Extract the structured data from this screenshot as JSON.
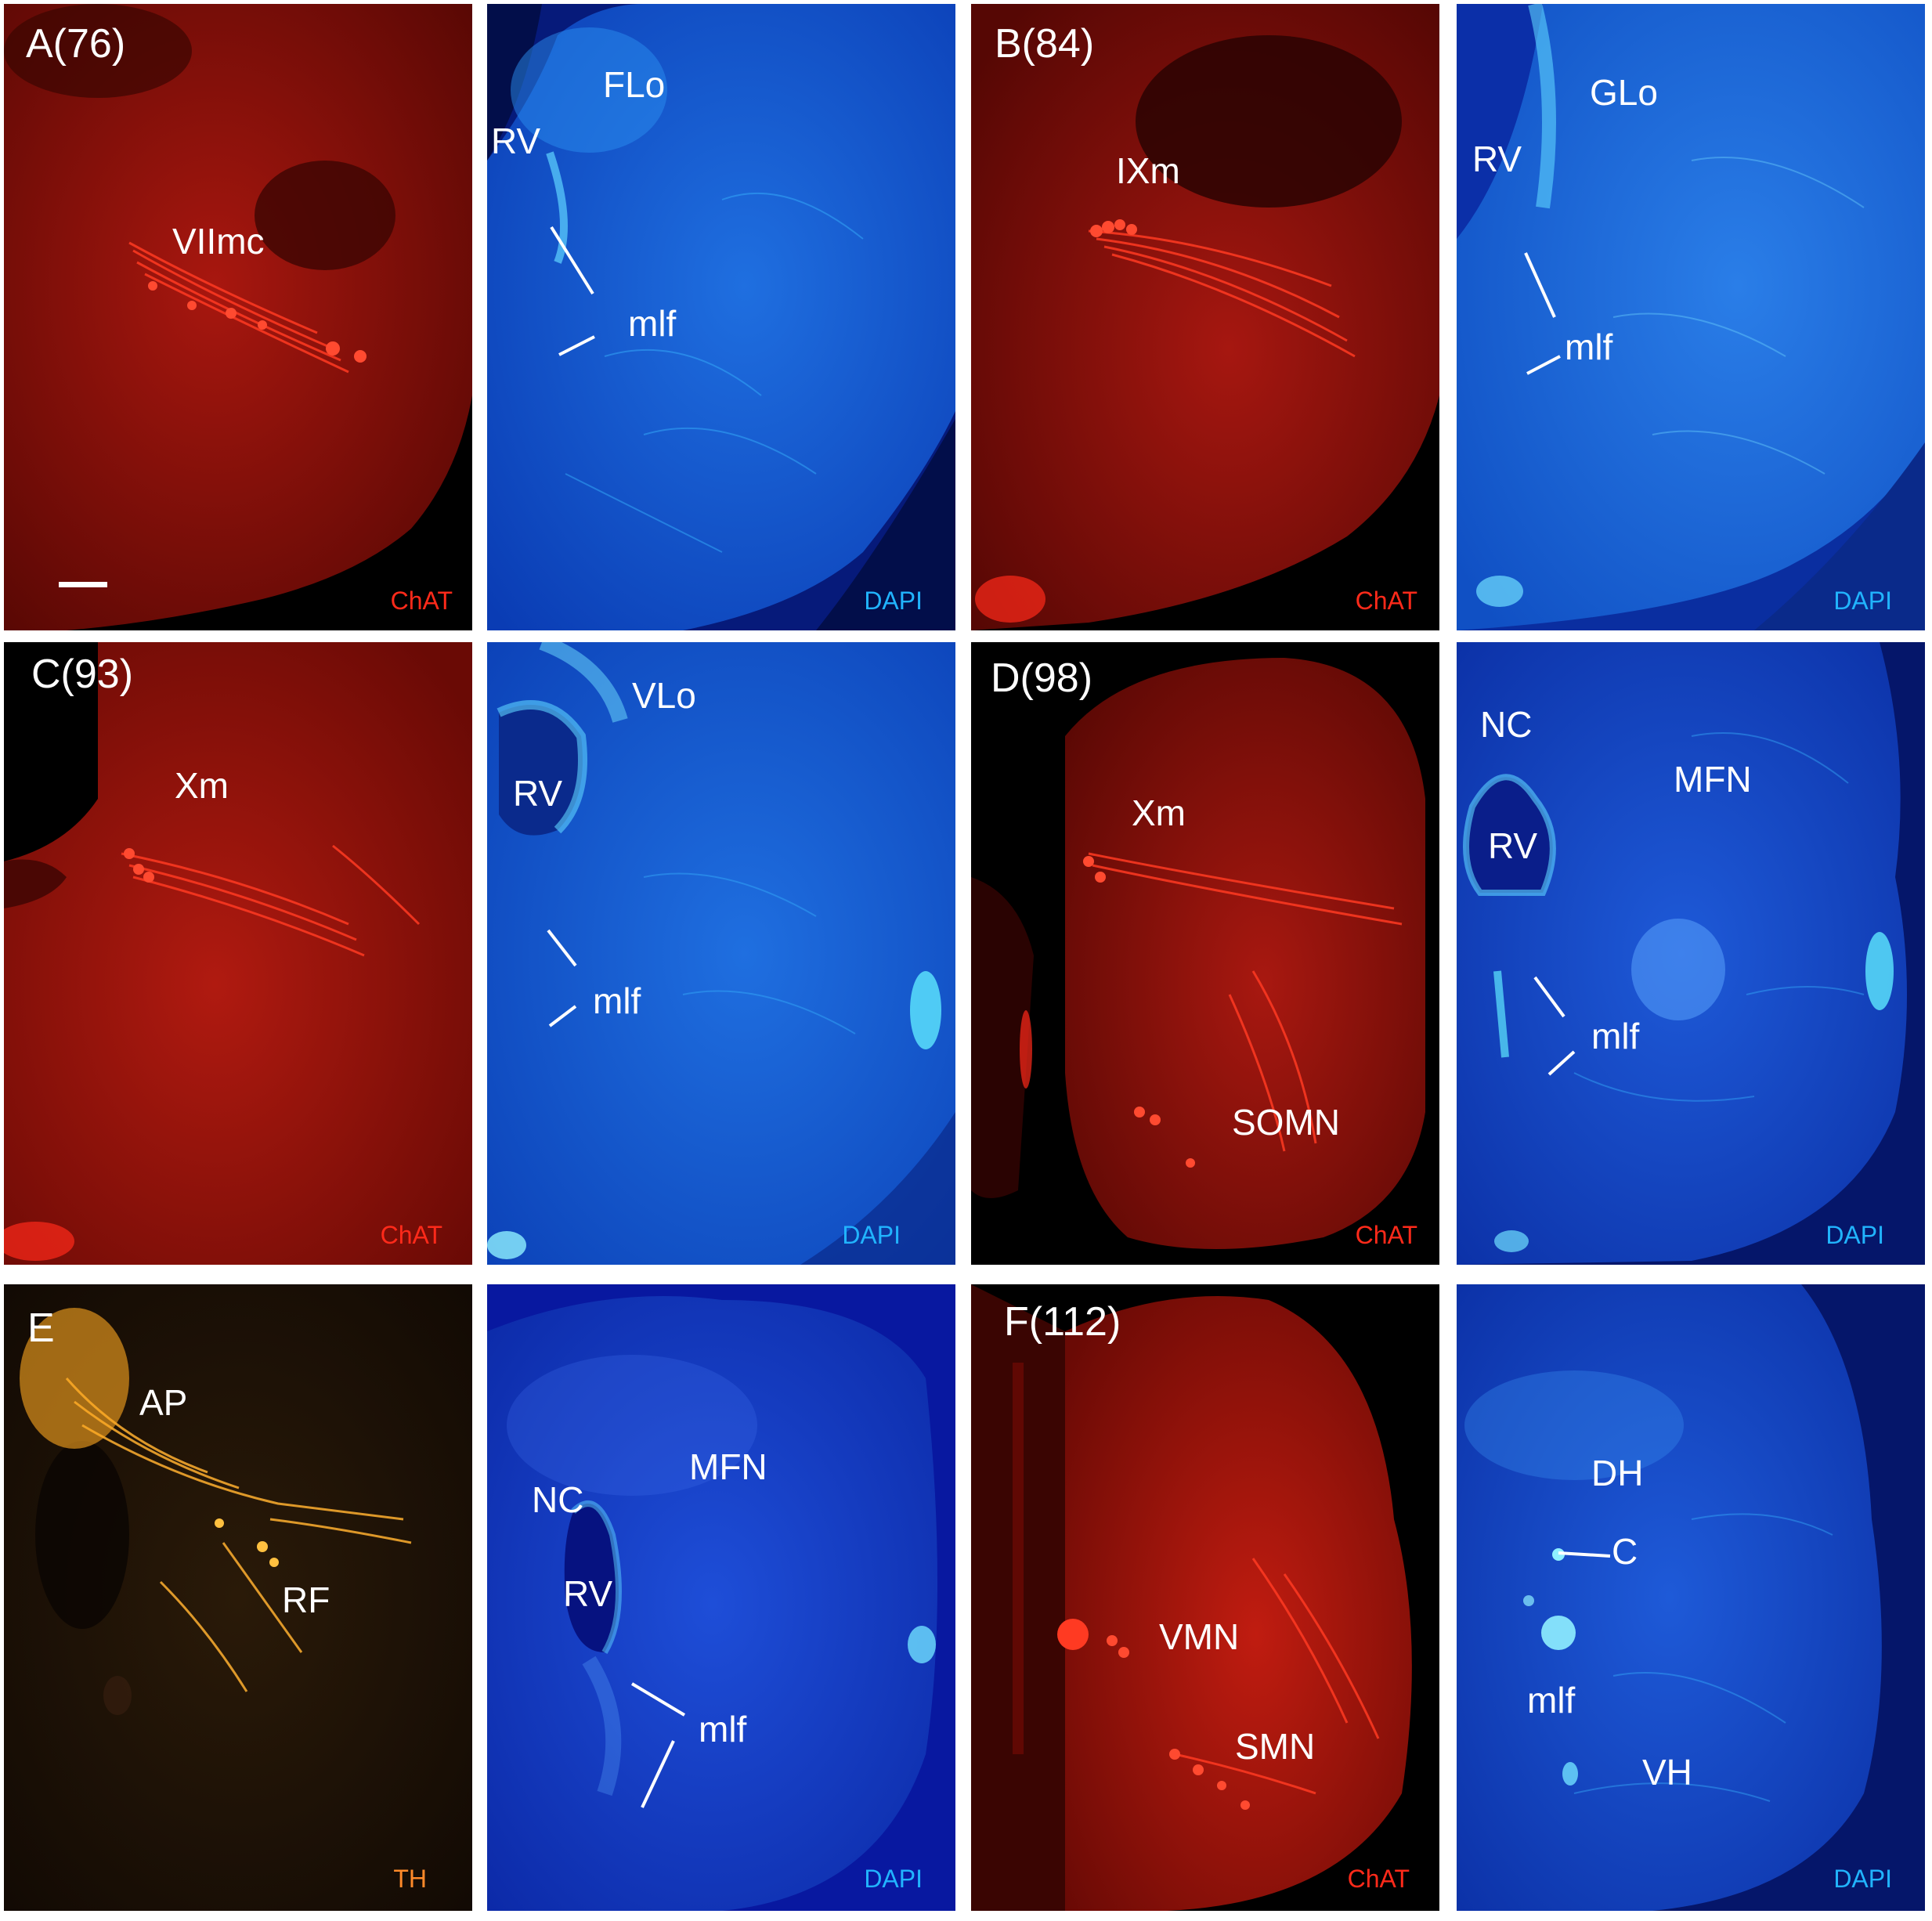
{
  "colors": {
    "chat": "#ff2a1a",
    "dapi": "#21b4ff",
    "th": "#ff8a2a",
    "label": "#ffffff"
  },
  "panels": {
    "A": {
      "id": "A(76)",
      "chat_labels": [
        "VIImc"
      ],
      "chat_stain": "ChAT",
      "dapi_labels": [
        "FLo",
        "RV",
        "mlf"
      ],
      "dapi_stain": "DAPI"
    },
    "B": {
      "id": "B(84)",
      "chat_labels": [
        "IXm"
      ],
      "chat_stain": "ChAT",
      "dapi_labels": [
        "GLo",
        "RV",
        "mlf"
      ],
      "dapi_stain": "DAPI"
    },
    "C": {
      "id": "C(93)",
      "chat_labels": [
        "Xm"
      ],
      "chat_stain": "ChAT",
      "dapi_labels": [
        "VLo",
        "RV",
        "mlf"
      ],
      "dapi_stain": "DAPI"
    },
    "D": {
      "id": "D(98)",
      "chat_labels": [
        "Xm",
        "SOMN"
      ],
      "chat_stain": "ChAT",
      "dapi_labels": [
        "NC",
        "MFN",
        "RV",
        "mlf"
      ],
      "dapi_stain": "DAPI"
    },
    "E": {
      "id": "E",
      "th_labels": [
        "AP",
        "RF"
      ],
      "th_stain": "TH",
      "dapi_labels": [
        "NC",
        "MFN",
        "RV",
        "mlf"
      ],
      "dapi_stain": "DAPI"
    },
    "F": {
      "id": "F(112)",
      "chat_labels": [
        "VMN",
        "SMN"
      ],
      "chat_stain": "ChAT",
      "dapi_labels": [
        "DH",
        "C",
        "mlf",
        "VH"
      ],
      "dapi_stain": "DAPI"
    }
  }
}
